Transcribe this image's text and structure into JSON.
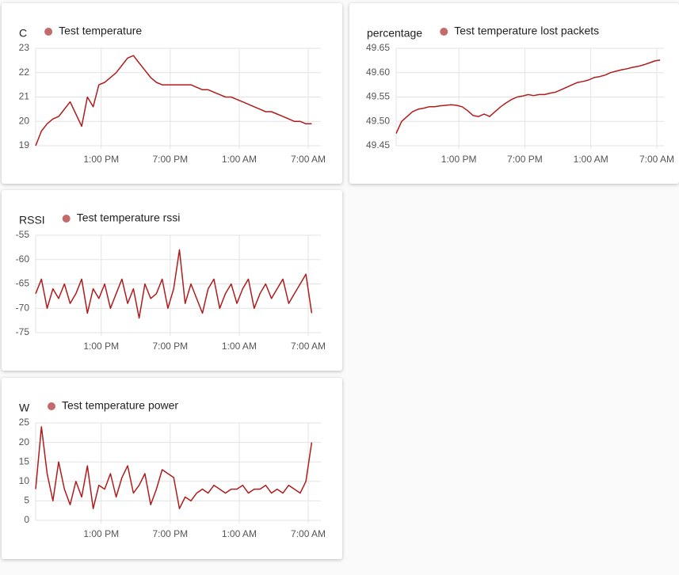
{
  "chart_data": [
    {
      "type": "line",
      "y_label": "C",
      "x": [
        7.3,
        7.8,
        8.3,
        8.8,
        9.3,
        9.8,
        10.3,
        10.8,
        11.3,
        11.8,
        12.3,
        12.8,
        13.3,
        13.8,
        14.3,
        14.8,
        15.3,
        15.8,
        16.3,
        16.8,
        17.3,
        17.8,
        18.3,
        18.8,
        19.3,
        19.8,
        20.3,
        20.8,
        21.3,
        21.8,
        22.3,
        22.8,
        23.3,
        23.8,
        24.3,
        24.8,
        25.3,
        25.8,
        26.3,
        26.8,
        27.3,
        27.8,
        28.3,
        28.8,
        29.3,
        29.8,
        30.3,
        30.8,
        31.3
      ],
      "xlim": [
        7.3,
        32.1
      ],
      "xticks": [
        {
          "value": 13,
          "label": "1:00 PM"
        },
        {
          "value": 19,
          "label": "7:00 PM"
        },
        {
          "value": 25,
          "label": "1:00 AM"
        },
        {
          "value": 31,
          "label": "7:00 AM"
        }
      ],
      "ylim": [
        19,
        23
      ],
      "yticks": [
        19,
        20,
        21,
        22,
        23
      ],
      "grid": true,
      "series": [
        {
          "name": "Test temperature",
          "color": "#b01c1c",
          "legend_color": "#c46a6a",
          "values": [
            19.0,
            19.6,
            19.9,
            20.1,
            20.2,
            20.5,
            20.8,
            20.3,
            19.8,
            21.0,
            20.6,
            21.5,
            21.6,
            21.8,
            22.0,
            22.3,
            22.6,
            22.7,
            22.4,
            22.1,
            21.8,
            21.6,
            21.5,
            21.5,
            21.5,
            21.5,
            21.5,
            21.5,
            21.4,
            21.3,
            21.3,
            21.2,
            21.1,
            21.0,
            21.0,
            20.9,
            20.8,
            20.7,
            20.6,
            20.5,
            20.4,
            20.4,
            20.3,
            20.2,
            20.1,
            20.0,
            20.0,
            19.9,
            19.9
          ]
        }
      ]
    },
    {
      "type": "line",
      "y_label": "percentage",
      "x": [
        7.3,
        7.8,
        8.3,
        8.8,
        9.3,
        9.8,
        10.3,
        10.8,
        11.3,
        11.8,
        12.3,
        12.8,
        13.3,
        13.8,
        14.3,
        14.8,
        15.3,
        15.8,
        16.3,
        16.8,
        17.3,
        17.8,
        18.3,
        18.8,
        19.3,
        19.8,
        20.3,
        20.8,
        21.3,
        21.8,
        22.3,
        22.8,
        23.3,
        23.8,
        24.3,
        24.8,
        25.3,
        25.8,
        26.3,
        26.8,
        27.3,
        27.8,
        28.3,
        28.8,
        29.3,
        29.8,
        30.3,
        30.8,
        31.3
      ],
      "xlim": [
        7.3,
        31.65
      ],
      "xticks": [
        {
          "value": 13,
          "label": "1:00 PM"
        },
        {
          "value": 19,
          "label": "7:00 PM"
        },
        {
          "value": 25,
          "label": "1:00 AM"
        },
        {
          "value": 31,
          "label": "7:00 AM"
        }
      ],
      "ylim": [
        49.45,
        49.65
      ],
      "yticks": [
        49.45,
        {
          "value": 49.5,
          "label": "49.50"
        },
        49.55,
        {
          "value": 49.6,
          "label": "49.60"
        },
        49.65
      ],
      "grid": true,
      "series": [
        {
          "name": "Test temperature lost packets",
          "color": "#b01c1c",
          "legend_color": "#c46a6a",
          "values": [
            49.475,
            49.5,
            49.51,
            49.52,
            49.525,
            49.527,
            49.53,
            49.53,
            49.532,
            49.533,
            49.534,
            49.533,
            49.53,
            49.522,
            49.512,
            49.51,
            49.515,
            49.51,
            49.52,
            49.53,
            49.538,
            49.545,
            49.55,
            49.552,
            49.555,
            49.553,
            49.555,
            49.555,
            49.558,
            49.56,
            49.565,
            49.57,
            49.575,
            49.58,
            49.582,
            49.585,
            49.59,
            49.592,
            49.595,
            49.6,
            49.603,
            49.606,
            49.608,
            49.611,
            49.613,
            49.616,
            49.62,
            49.624,
            49.626
          ]
        }
      ]
    },
    {
      "type": "line",
      "y_label": "RSSI",
      "x": [
        7.3,
        7.8,
        8.3,
        8.8,
        9.3,
        9.8,
        10.3,
        10.8,
        11.3,
        11.8,
        12.3,
        12.8,
        13.3,
        13.8,
        14.3,
        14.8,
        15.3,
        15.8,
        16.3,
        16.8,
        17.3,
        17.8,
        18.3,
        18.8,
        19.3,
        19.8,
        20.3,
        20.8,
        21.3,
        21.8,
        22.3,
        22.8,
        23.3,
        23.8,
        24.3,
        24.8,
        25.3,
        25.8,
        26.3,
        26.8,
        27.3,
        27.8,
        28.3,
        28.8,
        29.3,
        29.8,
        30.3,
        30.8,
        31.3
      ],
      "xlim": [
        7.3,
        32.1
      ],
      "xticks": [
        {
          "value": 13,
          "label": "1:00 PM"
        },
        {
          "value": 19,
          "label": "7:00 PM"
        },
        {
          "value": 25,
          "label": "1:00 AM"
        },
        {
          "value": 31,
          "label": "7:00 AM"
        }
      ],
      "ylim": [
        -75,
        -55
      ],
      "yticks": [
        -75,
        -70,
        -65,
        -60,
        -55
      ],
      "grid": true,
      "series": [
        {
          "name": "Test temperature rssi",
          "color": "#b01c1c",
          "legend_color": "#c46a6a",
          "values": [
            -67,
            -64,
            -70,
            -66,
            -68,
            -65,
            -69,
            -67,
            -64,
            -71,
            -66,
            -68,
            -65,
            -70,
            -67,
            -64,
            -69,
            -66,
            -72,
            -65,
            -68,
            -67,
            -64,
            -70,
            -66,
            -58,
            -69,
            -65,
            -68,
            -71,
            -66,
            -64,
            -70,
            -67,
            -65,
            -69,
            -66,
            -64,
            -70,
            -67,
            -65,
            -68,
            -66,
            -64,
            -69,
            -67,
            -65,
            -63,
            -71
          ]
        }
      ]
    },
    {
      "type": "line",
      "y_label": "W",
      "x": [
        7.3,
        7.8,
        8.3,
        8.8,
        9.3,
        9.8,
        10.3,
        10.8,
        11.3,
        11.8,
        12.3,
        12.8,
        13.3,
        13.8,
        14.3,
        14.8,
        15.3,
        15.8,
        16.3,
        16.8,
        17.3,
        17.8,
        18.3,
        18.8,
        19.3,
        19.8,
        20.3,
        20.8,
        21.3,
        21.8,
        22.3,
        22.8,
        23.3,
        23.8,
        24.3,
        24.8,
        25.3,
        25.8,
        26.3,
        26.8,
        27.3,
        27.8,
        28.3,
        28.8,
        29.3,
        29.8,
        30.3,
        30.8,
        31.3
      ],
      "xlim": [
        7.3,
        32.1
      ],
      "xticks": [
        {
          "value": 13,
          "label": "1:00 PM"
        },
        {
          "value": 19,
          "label": "7:00 PM"
        },
        {
          "value": 25,
          "label": "1:00 AM"
        },
        {
          "value": 31,
          "label": "7:00 AM"
        }
      ],
      "ylim": [
        0,
        25
      ],
      "yticks": [
        0,
        5,
        10,
        15,
        20,
        25
      ],
      "grid": true,
      "series": [
        {
          "name": "Test temperature power",
          "color": "#b01c1c",
          "legend_color": "#c46a6a",
          "values": [
            8,
            24,
            12,
            5,
            15,
            8,
            4,
            10,
            6,
            14,
            3,
            9,
            8,
            12,
            6,
            11,
            14,
            7,
            9,
            12,
            4,
            8,
            13,
            12,
            11,
            3,
            6,
            5,
            7,
            8,
            7,
            9,
            8,
            7,
            8,
            8,
            9,
            7,
            8,
            8,
            9,
            7,
            8,
            7,
            9,
            8,
            7,
            10,
            20
          ]
        }
      ]
    }
  ]
}
